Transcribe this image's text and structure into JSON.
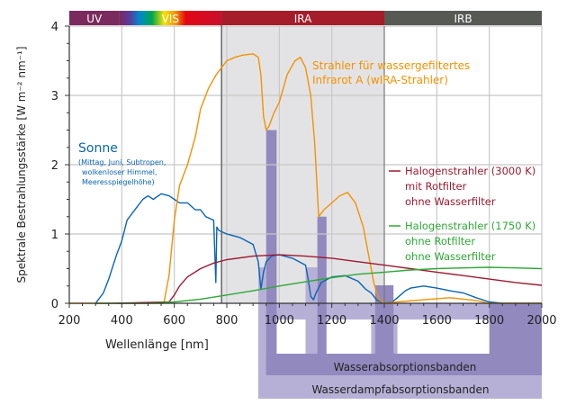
{
  "chart_data": {
    "type": "line",
    "xlabel": "Wellenlänge [nm]",
    "ylabel": "Spektrale Bestrahlungsstärke [W m⁻² nm⁻¹]",
    "xlim": [
      200,
      2000
    ],
    "ylim": [
      0,
      4
    ],
    "xticks": [
      "200",
      "400",
      "600",
      "800",
      "1000",
      "1200",
      "1400",
      "1600",
      "1800",
      "2000"
    ],
    "yticks": [
      "0",
      "1",
      "2",
      "3",
      "4"
    ],
    "grid": true,
    "regions": [
      {
        "label": "UV",
        "from": 200,
        "to": 390,
        "color": "#7b2a5e"
      },
      {
        "label": "VIS",
        "from": 390,
        "to": 780,
        "color": "#c8102e"
      },
      {
        "label": "IRA",
        "from": 780,
        "to": 1400,
        "color": "#a51d2a"
      },
      {
        "label": "IRB",
        "from": 1400,
        "to": 2000,
        "color": "#575954"
      }
    ],
    "shaded_region": {
      "from": 780,
      "to": 1400,
      "color": "#e3e3e5"
    },
    "absorption_bands": {
      "water_label": "Wasserabsorptionsbanden",
      "vapor_label": "Wasserdampfabsorptionsbanden",
      "water_bands": [
        [
          950,
          990
        ],
        [
          1145,
          1180
        ],
        [
          1365,
          1435
        ],
        [
          1800,
          2000
        ]
      ],
      "vapor_bands": [
        [
          920,
          1000
        ],
        [
          1100,
          1180
        ],
        [
          1350,
          1450
        ],
        [
          1800,
          2000
        ]
      ]
    },
    "series": [
      {
        "name": "Sonne",
        "note": [
          "(Mittag, Juni, Subtropen,",
          "wolkenloser Himmel,",
          "Meeresspiegelhöhe)"
        ],
        "color": "#0a64b4",
        "x": [
          300,
          330,
          350,
          380,
          400,
          420,
          450,
          480,
          500,
          520,
          550,
          580,
          600,
          620,
          650,
          680,
          700,
          720,
          750,
          758,
          762,
          770,
          800,
          850,
          900,
          920,
          930,
          940,
          950,
          970,
          1000,
          1050,
          1100,
          1110,
          1120,
          1130,
          1140,
          1160,
          1200,
          1250,
          1300,
          1330,
          1350,
          1370,
          1400,
          1430,
          1450,
          1480,
          1500,
          1550,
          1600,
          1650,
          1700,
          1750,
          1800,
          1850,
          2000
        ],
        "y": [
          0,
          0.15,
          0.35,
          0.7,
          0.9,
          1.2,
          1.35,
          1.5,
          1.55,
          1.5,
          1.58,
          1.55,
          1.5,
          1.45,
          1.45,
          1.35,
          1.35,
          1.25,
          1.2,
          0.3,
          1.1,
          1.05,
          1.0,
          0.95,
          0.85,
          0.6,
          0.2,
          0.45,
          0.6,
          0.68,
          0.7,
          0.65,
          0.55,
          0.35,
          0.1,
          0.05,
          0.15,
          0.3,
          0.38,
          0.4,
          0.32,
          0.2,
          0.15,
          0.05,
          0.0,
          0.02,
          0.08,
          0.18,
          0.22,
          0.25,
          0.22,
          0.18,
          0.15,
          0.08,
          0.02,
          0.0,
          0.0
        ]
      },
      {
        "name": "Strahler für wassergefiltertes Infrarot A (wIRA-Strahler)",
        "label_lines": [
          "Strahler für wassergefiltertes",
          "Infrarot A (wIRA-Strahler)"
        ],
        "color": "#f39200",
        "x": [
          200,
          560,
          580,
          600,
          620,
          650,
          680,
          700,
          730,
          760,
          780,
          800,
          830,
          860,
          900,
          920,
          930,
          940,
          950,
          960,
          980,
          1000,
          1030,
          1060,
          1080,
          1100,
          1120,
          1135,
          1150,
          1160,
          1170,
          1200,
          1230,
          1260,
          1290,
          1320,
          1340,
          1360,
          1380,
          1400,
          1450,
          1550,
          1650,
          1750,
          1800,
          2000
        ],
        "y": [
          0,
          0,
          0.4,
          1.2,
          1.7,
          2.0,
          2.4,
          2.8,
          3.1,
          3.3,
          3.4,
          3.5,
          3.55,
          3.58,
          3.6,
          3.55,
          3.3,
          2.7,
          2.5,
          2.55,
          2.75,
          2.9,
          3.3,
          3.5,
          3.55,
          3.4,
          3.0,
          2.3,
          1.25,
          1.3,
          1.35,
          1.45,
          1.55,
          1.6,
          1.45,
          1.1,
          0.7,
          0.3,
          0.05,
          0.0,
          0.02,
          0.05,
          0.08,
          0.04,
          0.0,
          0.0
        ]
      },
      {
        "name": "Halogenstrahler (3000 K) mit Rotfilter ohne Wasserfilter",
        "label_lines": [
          "Halogenstrahler (3000 K)",
          "mit Rotfilter",
          "ohne Wasserfilter"
        ],
        "color": "#9b1b30",
        "x": [
          380,
          580,
          600,
          620,
          650,
          700,
          750,
          800,
          900,
          1000,
          1100,
          1200,
          1300,
          1400,
          1500,
          1600,
          1700,
          1800,
          1900,
          2000
        ],
        "y": [
          0,
          0.02,
          0.12,
          0.25,
          0.38,
          0.5,
          0.58,
          0.63,
          0.68,
          0.7,
          0.68,
          0.65,
          0.6,
          0.55,
          0.5,
          0.45,
          0.4,
          0.35,
          0.3,
          0.26
        ]
      },
      {
        "name": "Halogenstrahler (1750 K) ohne Rotfilter ohne Wasserfilter",
        "label_lines": [
          "Halogenstrahler (1750 K)",
          "ohne Rotfilter",
          "ohne Wasserfilter"
        ],
        "color": "#2ea836",
        "x": [
          300,
          500,
          600,
          700,
          800,
          900,
          1000,
          1100,
          1200,
          1300,
          1400,
          1500,
          1600,
          1700,
          1800,
          1900,
          2000
        ],
        "y": [
          0,
          0,
          0.02,
          0.06,
          0.12,
          0.18,
          0.25,
          0.31,
          0.37,
          0.42,
          0.45,
          0.48,
          0.5,
          0.51,
          0.52,
          0.51,
          0.5
        ]
      }
    ]
  }
}
